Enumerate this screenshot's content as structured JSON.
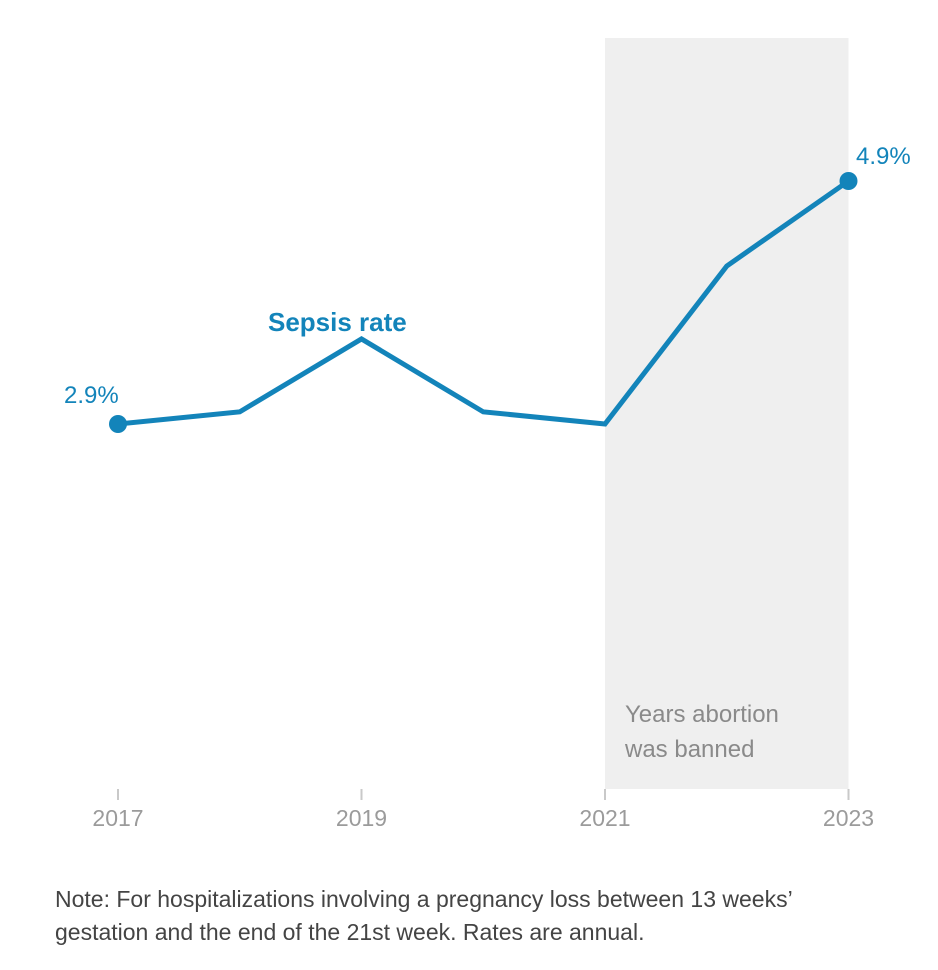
{
  "chart_data": {
    "type": "line",
    "title": "",
    "series": [
      {
        "name": "Sepsis rate",
        "x": [
          2017,
          2018,
          2019,
          2020,
          2021,
          2022,
          2023
        ],
        "values": [
          2.9,
          3.0,
          3.6,
          3.0,
          2.9,
          4.2,
          4.9
        ]
      }
    ],
    "x_range": [
      2017,
      2023
    ],
    "y_range_shown": [
      2.9,
      4.9
    ],
    "x_ticks": [
      2017,
      2019,
      2021,
      2023
    ],
    "x_tick_labels": [
      "2017",
      "2019",
      "2021",
      "2023"
    ],
    "grid": false,
    "legend": "none",
    "annotations": {
      "series_label": "Sepsis rate",
      "start_value_label": "2.9%",
      "end_value_label": "4.9%",
      "band": {
        "from": 2021,
        "to": 2023,
        "label_lines": [
          "Years abortion",
          "was banned"
        ]
      }
    }
  },
  "colors": {
    "background": "#ffffff",
    "line": "#1384ba",
    "band": "#efefef",
    "tick": "#c9c9c9",
    "axis_label": "#9b9b9b",
    "band_label": "#8a8a8a",
    "note": "#444444"
  },
  "note": {
    "lines": [
      "Note: For hospitalizations involving a pregnancy loss between 13 weeks’",
      "gestation and the end of the 21st week. Rates are annual."
    ]
  }
}
